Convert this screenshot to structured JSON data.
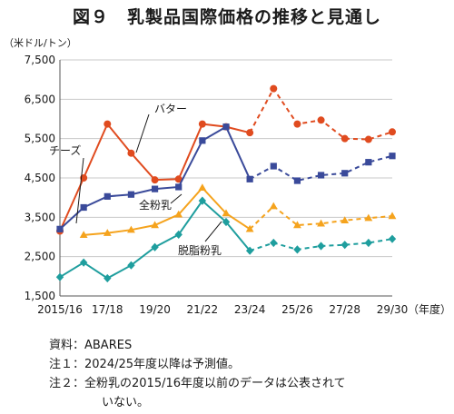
{
  "title": "図９　乳製品国際価格の推移と見通し",
  "notes": {
    "source": "資料：ABARES",
    "note1": "注１：2024/25年度以降は予測値。",
    "note2a": "注２：全粉乳の2015/16年度以前のデータは公表されて",
    "note2b": "いない。"
  },
  "chart_data": {
    "type": "line",
    "ylabel": "（米ドル/トン）",
    "xlabel": "（年度）",
    "ylim": [
      1500,
      7500
    ],
    "yticks": [
      "1,500",
      "2,500",
      "3,500",
      "4,500",
      "5,500",
      "6,500",
      "7,500"
    ],
    "ytick_values": [
      1500,
      2500,
      3500,
      4500,
      5500,
      6500,
      7500
    ],
    "x": [
      "2015/16",
      "16/17",
      "17/18",
      "18/19",
      "19/20",
      "20/21",
      "21/22",
      "22/23",
      "23/24",
      "24/25",
      "25/26",
      "26/27",
      "27/28",
      "28/29",
      "29/30"
    ],
    "xtick_labels": [
      "2015/16",
      "",
      "17/18",
      "",
      "19/20",
      "",
      "21/22",
      "",
      "23/24",
      "",
      "25/26",
      "",
      "27/28",
      "",
      "29/30"
    ],
    "forecast_start_index": 9,
    "grid": true,
    "series": [
      {
        "name": "バター",
        "color": "#e04b1f",
        "marker": "circle",
        "values": [
          3150,
          4500,
          5870,
          5130,
          4450,
          4470,
          5870,
          5800,
          5650,
          6770,
          5870,
          5970,
          5500,
          5480,
          5670
        ]
      },
      {
        "name": "チーズ",
        "color": "#3a4a9a",
        "marker": "square",
        "values": [
          3200,
          3750,
          4030,
          4080,
          4220,
          4270,
          5450,
          5800,
          4470,
          4800,
          4430,
          4570,
          4620,
          4900,
          5060
        ]
      },
      {
        "name": "全粉乳",
        "color": "#f5a31d",
        "marker": "triangle",
        "values": [
          null,
          3050,
          3100,
          3180,
          3300,
          3570,
          4250,
          3600,
          3200,
          3780,
          3300,
          3340,
          3420,
          3480,
          3530
        ]
      },
      {
        "name": "脱脂粉乳",
        "color": "#1f9e9e",
        "marker": "diamond",
        "values": [
          1980,
          2350,
          1950,
          2280,
          2740,
          3060,
          3920,
          3380,
          2650,
          2850,
          2680,
          2770,
          2800,
          2850,
          2950
        ]
      }
    ],
    "annotations": [
      {
        "text": "バター",
        "series": "バター"
      },
      {
        "text": "チーズ",
        "series": "チーズ"
      },
      {
        "text": "全粉乳",
        "series": "全粉乳"
      },
      {
        "text": "脱脂粉乳",
        "series": "脱脂粉乳"
      }
    ]
  }
}
